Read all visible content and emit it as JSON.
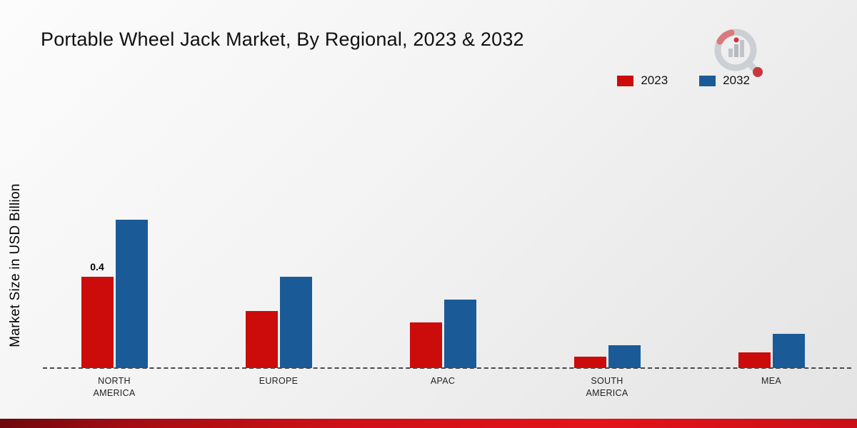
{
  "chart_data": {
    "type": "bar",
    "title": "Portable Wheel Jack Market, By Regional, 2023 & 2032",
    "ylabel": "Market Size in USD Billion",
    "xlabel": "",
    "categories": [
      "NORTH AMERICA",
      "EUROPE",
      "APAC",
      "SOUTH AMERICA",
      "MEA"
    ],
    "series": [
      {
        "name": "2023",
        "color": "#cc0b0b",
        "values": [
          0.4,
          0.25,
          0.2,
          0.05,
          0.07
        ]
      },
      {
        "name": "2032",
        "color": "#1a5b97",
        "values": [
          0.65,
          0.4,
          0.3,
          0.1,
          0.15
        ]
      }
    ],
    "annotations": [
      {
        "category_index": 0,
        "series_index": 0,
        "text": "0.4"
      }
    ],
    "ylim": [
      0,
      1.25
    ],
    "grid": false,
    "legend_position": "top-right",
    "baseline_style": "dashed"
  },
  "footer": {
    "accent_color": "#cf1017"
  }
}
